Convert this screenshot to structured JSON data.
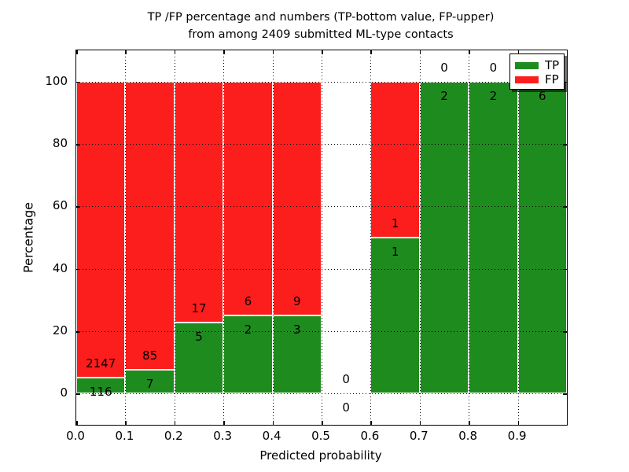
{
  "title": {
    "line1": "TP /FP percentage and numbers (TP-bottom value, FP-upper)",
    "line2": "from among 2409 submitted ML-type contacts"
  },
  "axes": {
    "xlabel": "Predicted probability",
    "ylabel": "Percentage"
  },
  "chart_data": {
    "type": "bar",
    "stacked": true,
    "title": "TP /FP percentage and numbers (TP-bottom value, FP-upper) from among 2409 submitted ML-type contacts",
    "total_submitted_contacts": 2409,
    "xlabel": "Predicted probability",
    "ylabel": "Percentage",
    "x_bins": [
      [
        0.0,
        0.1
      ],
      [
        0.1,
        0.2
      ],
      [
        0.2,
        0.3
      ],
      [
        0.3,
        0.4
      ],
      [
        0.4,
        0.5
      ],
      [
        0.5,
        0.6
      ],
      [
        0.6,
        0.7
      ],
      [
        0.7,
        0.8
      ],
      [
        0.8,
        0.9
      ],
      [
        0.9,
        1.0
      ]
    ],
    "xticks": [
      0.0,
      0.1,
      0.2,
      0.3,
      0.4,
      0.5,
      0.6,
      0.7,
      0.8,
      0.9
    ],
    "xtick_labels": [
      "0.0",
      "0.1",
      "0.2",
      "0.3",
      "0.4",
      "0.5",
      "0.6",
      "0.7",
      "0.8",
      "0.9"
    ],
    "yticks": [
      0,
      20,
      40,
      60,
      80,
      100
    ],
    "ytick_labels": [
      "0",
      "20",
      "40",
      "60",
      "80",
      "100"
    ],
    "xlim": [
      0,
      1
    ],
    "ylim": [
      -10,
      110
    ],
    "grid": "dotted black, drawn over bars",
    "bar_height_mode": "percent of bin total (TP+FP), stacked to 100%; empty bin draws no bar",
    "bar_label_rule": "FP count printed above TP/FP boundary, TP count printed below it",
    "series": [
      {
        "name": "TP",
        "color": "#1e8b1e",
        "counts": [
          116,
          7,
          5,
          2,
          3,
          0,
          1,
          2,
          2,
          6
        ]
      },
      {
        "name": "FP",
        "color": "#fc1d1d",
        "counts": [
          2147,
          85,
          17,
          6,
          9,
          0,
          1,
          0,
          0,
          0
        ]
      }
    ],
    "legend_position": "upper right"
  }
}
